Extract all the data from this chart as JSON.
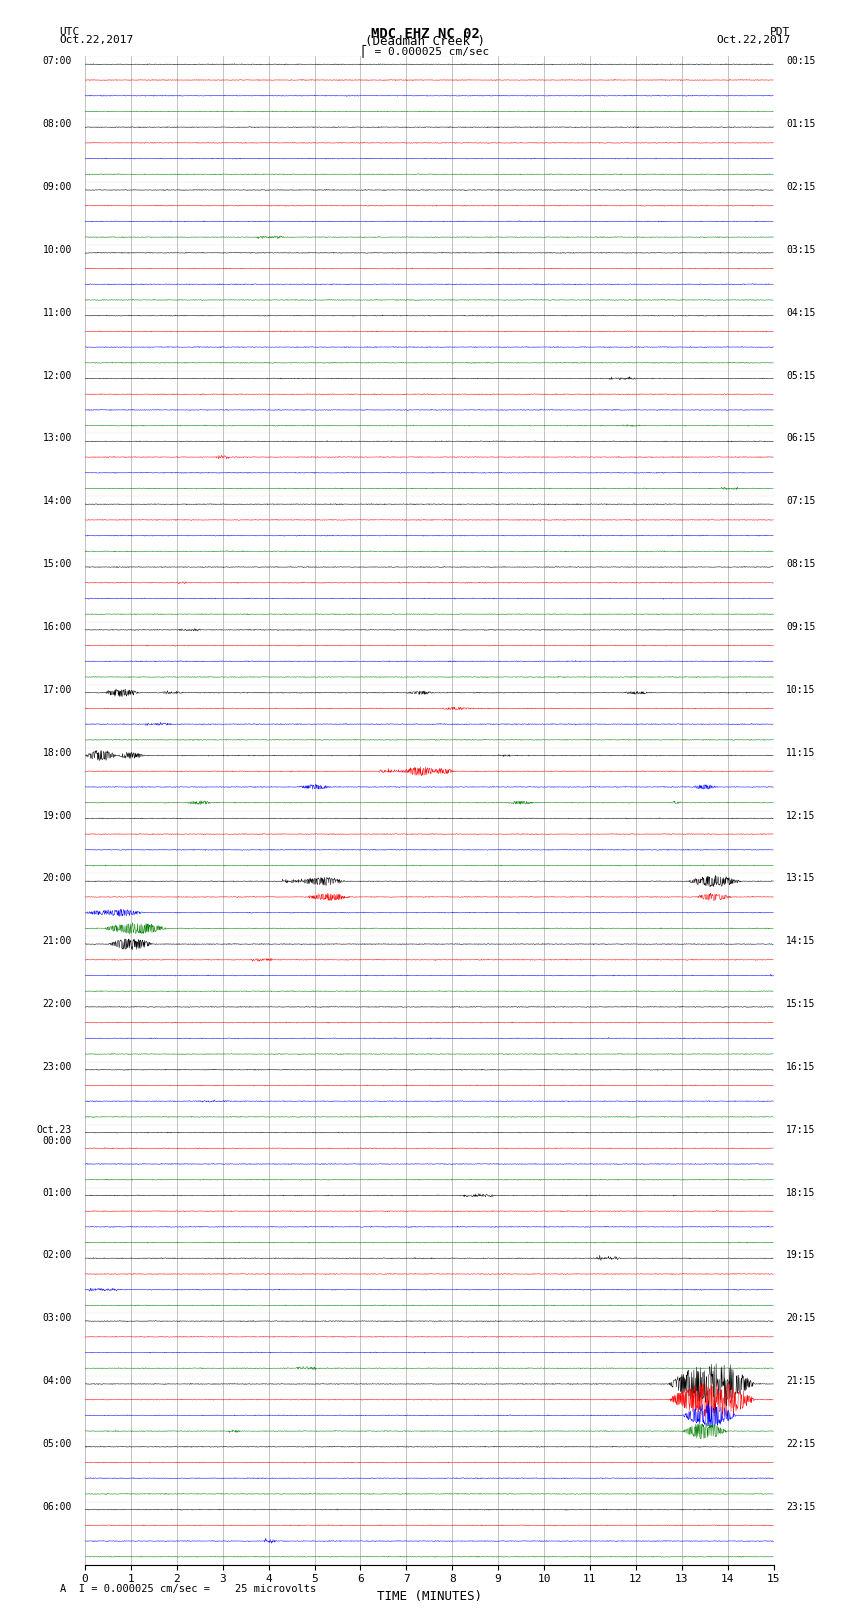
{
  "title_line1": "MDC EHZ NC 02",
  "title_line2": "(Deadman Creek )",
  "scale_label": "= 0.000025 cm/sec",
  "bottom_label": "A  I = 0.000025 cm/sec =    25 microvolts",
  "utc_label": "UTC\nOct.22,2017",
  "pdt_label": "PDT\nOct.22,2017",
  "xlabel": "TIME (MINUTES)",
  "background_color": "#ffffff",
  "trace_colors": [
    "black",
    "red",
    "blue",
    "green"
  ],
  "noise_amplitude": 0.012,
  "time_minutes": 15,
  "samples_per_trace": 1800,
  "left_times": [
    "07:00",
    "08:00",
    "09:00",
    "10:00",
    "11:00",
    "12:00",
    "13:00",
    "14:00",
    "15:00",
    "16:00",
    "17:00",
    "18:00",
    "19:00",
    "20:00",
    "21:00",
    "22:00",
    "23:00",
    "Oct.23\n00:00",
    "01:00",
    "02:00",
    "03:00",
    "04:00",
    "05:00",
    "06:00"
  ],
  "right_times": [
    "00:15",
    "01:15",
    "02:15",
    "03:15",
    "04:15",
    "05:15",
    "06:15",
    "07:15",
    "08:15",
    "09:15",
    "10:15",
    "11:15",
    "12:15",
    "13:15",
    "14:15",
    "15:15",
    "16:15",
    "17:15",
    "18:15",
    "19:15",
    "20:15",
    "21:15",
    "22:15",
    "23:15"
  ],
  "events": [
    {
      "row": 40,
      "color_idx": 2,
      "time": 0.8,
      "amp": 0.18,
      "dur": 0.4
    },
    {
      "row": 40,
      "color_idx": 2,
      "time": 7.3,
      "amp": 0.08,
      "dur": 0.3
    },
    {
      "row": 40,
      "color_idx": 2,
      "time": 12.0,
      "amp": 0.07,
      "dur": 0.3
    },
    {
      "row": 41,
      "color_idx": 3,
      "time": 8.1,
      "amp": 0.06,
      "dur": 0.4
    },
    {
      "row": 44,
      "color_idx": 0,
      "time": 0.2,
      "amp": 0.25,
      "dur": 0.5
    },
    {
      "row": 44,
      "color_idx": 0,
      "time": 1.0,
      "amp": 0.15,
      "dur": 0.3
    },
    {
      "row": 45,
      "color_idx": 1,
      "time": 7.3,
      "amp": 0.2,
      "dur": 0.4
    },
    {
      "row": 45,
      "color_idx": 1,
      "time": 7.8,
      "amp": 0.12,
      "dur": 0.3
    },
    {
      "row": 46,
      "color_idx": 2,
      "time": 5.0,
      "amp": 0.1,
      "dur": 0.4
    },
    {
      "row": 46,
      "color_idx": 2,
      "time": 13.5,
      "amp": 0.1,
      "dur": 0.3
    },
    {
      "row": 47,
      "color_idx": 3,
      "time": 2.5,
      "amp": 0.08,
      "dur": 0.3
    },
    {
      "row": 47,
      "color_idx": 3,
      "time": 9.5,
      "amp": 0.08,
      "dur": 0.3
    },
    {
      "row": 52,
      "color_idx": 2,
      "time": 5.2,
      "amp": 0.18,
      "dur": 0.5
    },
    {
      "row": 52,
      "color_idx": 2,
      "time": 13.7,
      "amp": 0.25,
      "dur": 0.6
    },
    {
      "row": 53,
      "color_idx": 3,
      "time": 5.3,
      "amp": 0.16,
      "dur": 0.5
    },
    {
      "row": 53,
      "color_idx": 3,
      "time": 13.7,
      "amp": 0.15,
      "dur": 0.4
    },
    {
      "row": 54,
      "color_idx": 0,
      "time": 0.2,
      "amp": 0.1,
      "dur": 0.4
    },
    {
      "row": 54,
      "color_idx": 0,
      "time": 0.8,
      "amp": 0.15,
      "dur": 0.5
    },
    {
      "row": 55,
      "color_idx": 1,
      "time": 1.3,
      "amp": 0.22,
      "dur": 0.5
    },
    {
      "row": 55,
      "color_idx": 1,
      "time": 0.8,
      "amp": 0.18,
      "dur": 0.4
    },
    {
      "row": 56,
      "color_idx": 2,
      "time": 1.0,
      "amp": 0.25,
      "dur": 0.5
    },
    {
      "row": 84,
      "color_idx": 0,
      "time": 13.5,
      "amp": 0.8,
      "dur": 0.8
    },
    {
      "row": 84,
      "color_idx": 0,
      "time": 14.0,
      "amp": 0.6,
      "dur": 0.6
    },
    {
      "row": 85,
      "color_idx": 1,
      "time": 13.5,
      "amp": 0.7,
      "dur": 0.8
    },
    {
      "row": 85,
      "color_idx": 1,
      "time": 14.1,
      "amp": 0.5,
      "dur": 0.5
    },
    {
      "row": 86,
      "color_idx": 2,
      "time": 13.6,
      "amp": 0.5,
      "dur": 0.6
    },
    {
      "row": 87,
      "color_idx": 3,
      "time": 13.5,
      "amp": 0.35,
      "dur": 0.5
    }
  ]
}
